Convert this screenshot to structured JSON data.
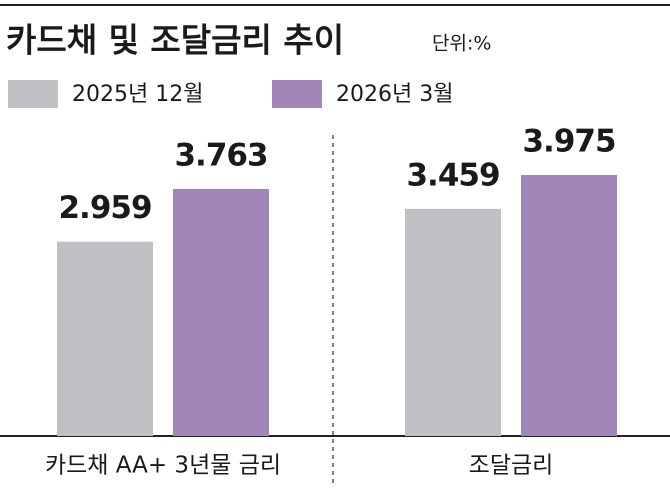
{
  "chart_data": {
    "type": "bar",
    "title": "카드채 및 조달금리 추이",
    "subtitle": "단위:%",
    "categories": [
      "카드채 AA+ 3년물 금리",
      "조달금리"
    ],
    "series": [
      {
        "name": "2025년 12월",
        "color": "#c0bfc4",
        "values": [
          2.959,
          3.459
        ]
      },
      {
        "name": "2026년 3월",
        "color": "#a086b9",
        "values": [
          3.763,
          3.975
        ]
      }
    ]
  }
}
